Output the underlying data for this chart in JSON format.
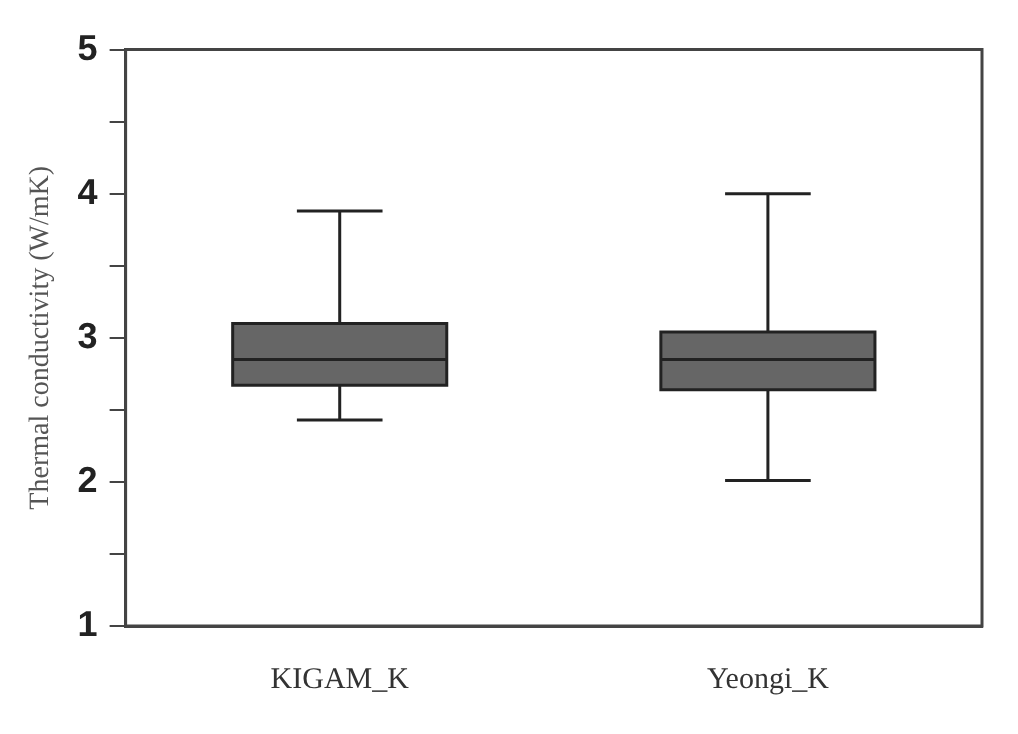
{
  "chart_data": {
    "type": "box",
    "ylabel": "Thermal conductivity (W/mK)",
    "categories": [
      "KIGAM_K",
      "Yeongi_K"
    ],
    "color": "#666666",
    "boxes": [
      {
        "low": 2.43,
        "q1": 2.67,
        "median": 2.85,
        "q3": 3.1,
        "high": 3.88
      },
      {
        "low": 2.01,
        "q1": 2.64,
        "median": 2.85,
        "q3": 3.04,
        "high": 4.0
      }
    ],
    "ylim": [
      1,
      5
    ],
    "yticks": [
      1,
      {
        "value": 1.5,
        "label": null
      },
      2,
      {
        "value": 2.5,
        "label": null
      },
      3,
      {
        "value": 3.5,
        "label": null
      },
      4,
      {
        "value": 4.5,
        "label": null
      },
      5
    ],
    "grid": false
  }
}
